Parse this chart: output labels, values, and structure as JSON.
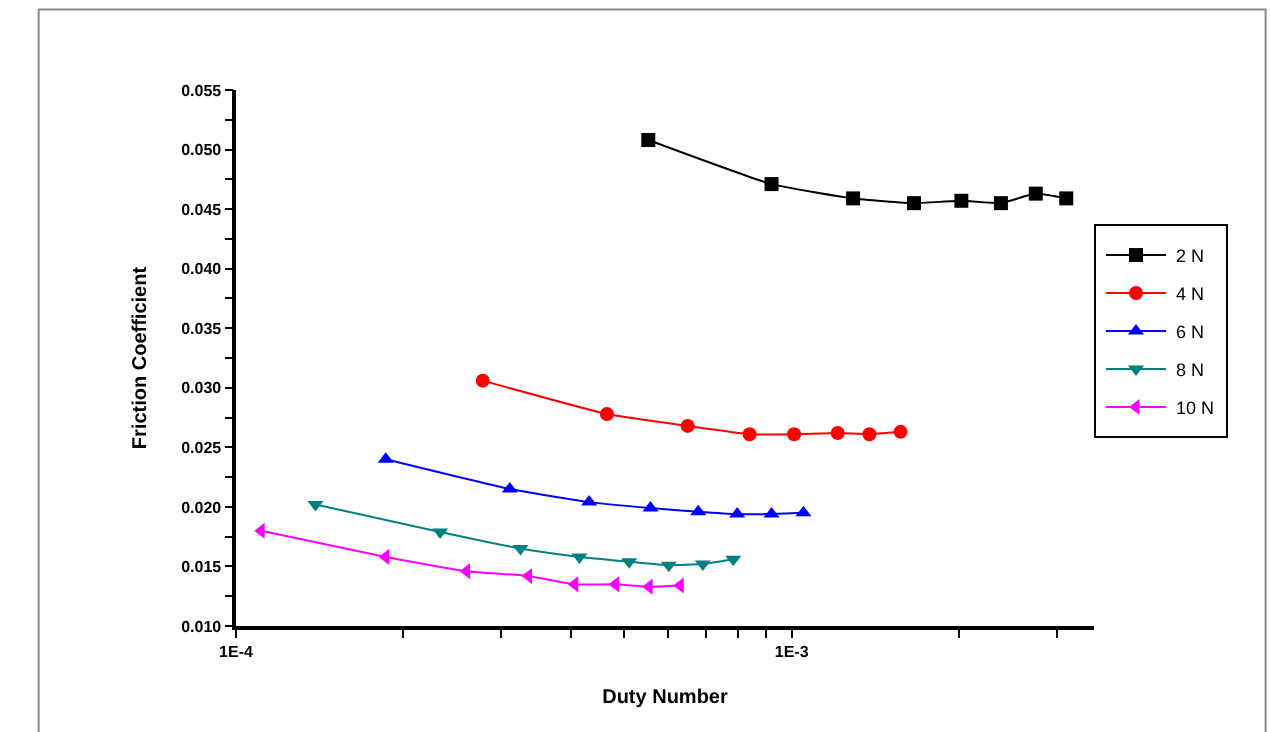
{
  "chart_data": {
    "type": "line",
    "xlabel": "Duty Number",
    "ylabel": "Friction Coefficient",
    "log": "x",
    "legend": "right",
    "line_style": "solid",
    "xlim": [
      0.0001,
      0.0035
    ],
    "xticks": [
      {
        "value": 0.0001,
        "label": "1E-4"
      },
      {
        "value": 0.0002,
        "label": null
      },
      {
        "value": 0.0003,
        "label": null
      },
      {
        "value": 0.0004,
        "label": null
      },
      {
        "value": 0.0005,
        "label": null
      },
      {
        "value": 0.0006,
        "label": null
      },
      {
        "value": 0.0007,
        "label": null
      },
      {
        "value": 0.0008,
        "label": null
      },
      {
        "value": 0.0009,
        "label": null
      },
      {
        "value": 0.001,
        "label": "1E-3"
      },
      {
        "value": 0.002,
        "label": null
      },
      {
        "value": 0.003,
        "label": null
      }
    ],
    "ylim": [
      0.01,
      0.055
    ],
    "yticks": [
      {
        "value": 0.01,
        "label": "0.010"
      },
      {
        "value": 0.0125,
        "label": null
      },
      {
        "value": 0.015,
        "label": "0.015"
      },
      {
        "value": 0.0175,
        "label": null
      },
      {
        "value": 0.02,
        "label": "0.020"
      },
      {
        "value": 0.0225,
        "label": null
      },
      {
        "value": 0.025,
        "label": "0.025"
      },
      {
        "value": 0.0275,
        "label": null
      },
      {
        "value": 0.03,
        "label": "0.030"
      },
      {
        "value": 0.0325,
        "label": null
      },
      {
        "value": 0.035,
        "label": "0.035"
      },
      {
        "value": 0.0375,
        "label": null
      },
      {
        "value": 0.04,
        "label": "0.040"
      },
      {
        "value": 0.0425,
        "label": null
      },
      {
        "value": 0.045,
        "label": "0.045"
      },
      {
        "value": 0.0475,
        "label": null
      },
      {
        "value": 0.05,
        "label": "0.050"
      },
      {
        "value": 0.0525,
        "label": null
      },
      {
        "value": 0.055,
        "label": "0.055"
      }
    ],
    "series": [
      {
        "name": "2 N",
        "color": "#000000",
        "marker": "square",
        "x": [
          0.000552,
          0.00092,
          0.00129,
          0.00166,
          0.00202,
          0.00238,
          0.00275,
          0.00312
        ],
        "values": [
          0.0508,
          0.0471,
          0.0459,
          0.0455,
          0.0457,
          0.0455,
          0.0463,
          0.0459
        ]
      },
      {
        "name": "4 N",
        "color": "#ff0000",
        "marker": "circle",
        "x": [
          0.000278,
          0.000465,
          0.00065,
          0.00084,
          0.00101,
          0.00121,
          0.00138,
          0.00157
        ],
        "values": [
          0.0306,
          0.0278,
          0.0268,
          0.0261,
          0.0261,
          0.0262,
          0.0261,
          0.0263
        ]
      },
      {
        "name": "6 N",
        "color": "#0000ff",
        "marker": "triangle",
        "x": [
          0.000186,
          0.000311,
          0.000432,
          0.000557,
          0.000679,
          0.000798,
          0.00092,
          0.00105
        ],
        "values": [
          0.024,
          0.0215,
          0.0204,
          0.0199,
          0.0196,
          0.0194,
          0.0194,
          0.0195
        ]
      },
      {
        "name": "8 N",
        "color": "#008080",
        "marker": "triangle-down",
        "x": [
          0.000139,
          0.000233,
          0.000325,
          0.000415,
          0.00051,
          0.000601,
          0.000692,
          0.000785
        ],
        "values": [
          0.0202,
          0.0179,
          0.0165,
          0.0158,
          0.0154,
          0.0151,
          0.0152,
          0.0156
        ]
      },
      {
        "name": "10 N",
        "color": "#ff00ff",
        "marker": "triangle-left",
        "x": [
          0.000111,
          0.000186,
          0.00026,
          0.000336,
          0.000407,
          0.000482,
          0.000554,
          0.00063
        ],
        "values": [
          0.018,
          0.0158,
          0.0146,
          0.0142,
          0.0135,
          0.0135,
          0.0133,
          0.0134
        ]
      }
    ]
  }
}
